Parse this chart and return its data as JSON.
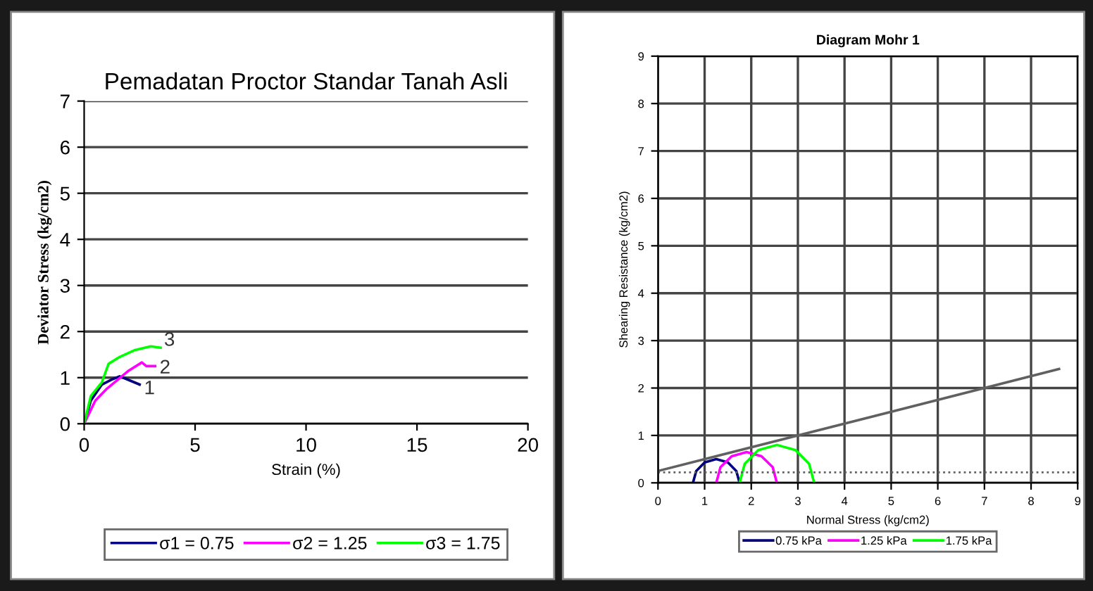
{
  "chart_data": [
    {
      "type": "line",
      "title": "Pemadatan Proctor Standar Tanah Asli",
      "xlabel": "Strain (%)",
      "ylabel": "Deviator Stress (kg/cm2)",
      "xlim": [
        0,
        20
      ],
      "ylim": [
        0,
        7
      ],
      "xticks": [
        0,
        5,
        10,
        15,
        20
      ],
      "yticks": [
        0,
        1,
        2,
        3,
        4,
        5,
        6,
        7
      ],
      "grid": "y",
      "legend": "bottom",
      "marker": "none",
      "line_style": "solid",
      "series": [
        {
          "name": "σ1 = 0.75",
          "color": "#000080",
          "x": [
            0,
            0.3,
            0.8,
            1.2,
            1.6,
            2.0,
            2.5
          ],
          "values": [
            0,
            0.5,
            0.85,
            0.95,
            1.03,
            0.95,
            0.85
          ]
        },
        {
          "name": "σ2 = 1.25",
          "color": "#ff00ff",
          "x": [
            0,
            0.5,
            1.0,
            1.5,
            2.0,
            2.6,
            2.8,
            3.2
          ],
          "values": [
            0,
            0.5,
            0.75,
            0.95,
            1.15,
            1.33,
            1.25,
            1.25
          ]
        },
        {
          "name": "σ3 = 1.75",
          "color": "#00ff00",
          "x": [
            0,
            0.3,
            0.8,
            1.1,
            1.6,
            2.3,
            3.0,
            3.45
          ],
          "values": [
            0,
            0.6,
            0.9,
            1.3,
            1.45,
            1.6,
            1.68,
            1.65
          ]
        }
      ],
      "annotations": [
        {
          "text": "1",
          "x": 2.7,
          "y": 0.75
        },
        {
          "text": "2",
          "x": 3.4,
          "y": 1.2
        },
        {
          "text": "3",
          "x": 3.6,
          "y": 1.8
        }
      ]
    },
    {
      "type": "line",
      "title": "Diagram Mohr 1",
      "xlabel": "Normal Stress (kg/cm2)",
      "ylabel": "Shearing Resistance (kg/cm2)",
      "xlim": [
        0,
        9
      ],
      "ylim": [
        0,
        9
      ],
      "xticks": [
        0,
        1,
        2,
        3,
        4,
        5,
        6,
        7,
        8,
        9
      ],
      "yticks": [
        0,
        1,
        2,
        3,
        4,
        5,
        6,
        7,
        8,
        9
      ],
      "grid": true,
      "legend": "bottom",
      "marker": "none",
      "line_style": "solid",
      "series": [
        {
          "name": "0.75 kPa",
          "color": "#000080",
          "x": [
            0.75,
            0.82,
            1.0,
            1.25,
            1.5,
            1.68,
            1.75
          ],
          "values": [
            0,
            0.25,
            0.43,
            0.5,
            0.43,
            0.25,
            0
          ]
        },
        {
          "name": "1.25 kPa",
          "color": "#ff00ff",
          "x": [
            1.25,
            1.34,
            1.58,
            1.9,
            2.22,
            2.46,
            2.55
          ],
          "values": [
            0,
            0.33,
            0.56,
            0.65,
            0.56,
            0.33,
            0
          ]
        },
        {
          "name": "1.75 kPa",
          "color": "#00ff00",
          "x": [
            1.75,
            1.86,
            2.15,
            2.55,
            2.95,
            3.24,
            3.35
          ],
          "values": [
            0,
            0.4,
            0.69,
            0.8,
            0.69,
            0.4,
            0
          ]
        },
        {
          "color": "#606060",
          "x": [
            0,
            8.6
          ],
          "values": [
            0.25,
            2.4
          ]
        }
      ],
      "ref_lines": [
        {
          "axis": "y",
          "value": 0.22,
          "color": "#606060",
          "line_style": "dotted"
        }
      ]
    }
  ]
}
